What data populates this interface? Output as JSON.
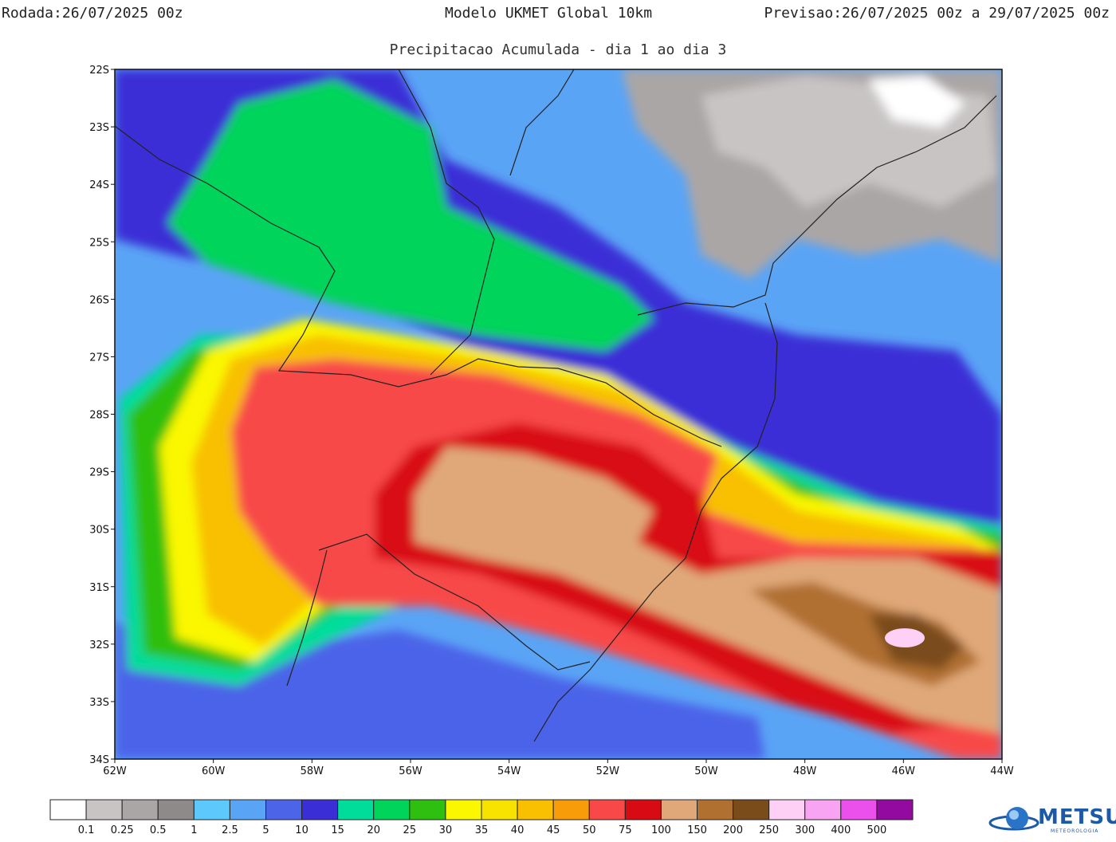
{
  "header": {
    "run_label": "Rodada:",
    "run_value": "26/07/2025 00z",
    "model": "Modelo UKMET Global 10km",
    "forecast_label": "Previsao:",
    "forecast_value": "26/07/2025 00z a 29/07/2025 00z",
    "subtitle": "Precipitacao Acumulada - dia 1 ao dia 3"
  },
  "axes": {
    "lat_labels": [
      "22S",
      "23S",
      "24S",
      "25S",
      "26S",
      "27S",
      "28S",
      "29S",
      "30S",
      "31S",
      "32S",
      "33S",
      "34S"
    ],
    "lon_labels": [
      "62W",
      "60W",
      "58W",
      "56W",
      "54W",
      "52W",
      "50W",
      "48W",
      "46W",
      "44W"
    ],
    "lat_range": [
      -34,
      -22
    ],
    "lon_range": [
      -62,
      -44
    ]
  },
  "legend": {
    "thresholds": [
      "0.1",
      "0.25",
      "0.5",
      "1",
      "2.5",
      "5",
      "10",
      "15",
      "20",
      "25",
      "30",
      "35",
      "40",
      "45",
      "50",
      "75",
      "100",
      "150",
      "200",
      "250",
      "300",
      "400",
      "500"
    ],
    "colors": [
      "#ffffff",
      "#c8c4c4",
      "#aaa6a6",
      "#8e8a8a",
      "#5cc8fb",
      "#5aa4f6",
      "#4b64e8",
      "#3a2fd6",
      "#00dd9a",
      "#00d45a",
      "#2ebf10",
      "#faf700",
      "#f8e200",
      "#f8c000",
      "#f89c0a",
      "#f84848",
      "#d80a14",
      "#e0a878",
      "#b07030",
      "#7a4c1a",
      "#ffd0f6",
      "#f8a4f2",
      "#ec50ec",
      "#920aa0"
    ]
  },
  "branding": {
    "logo_text": "METSUL",
    "logo_sub": "METEOROLOGIA"
  }
}
